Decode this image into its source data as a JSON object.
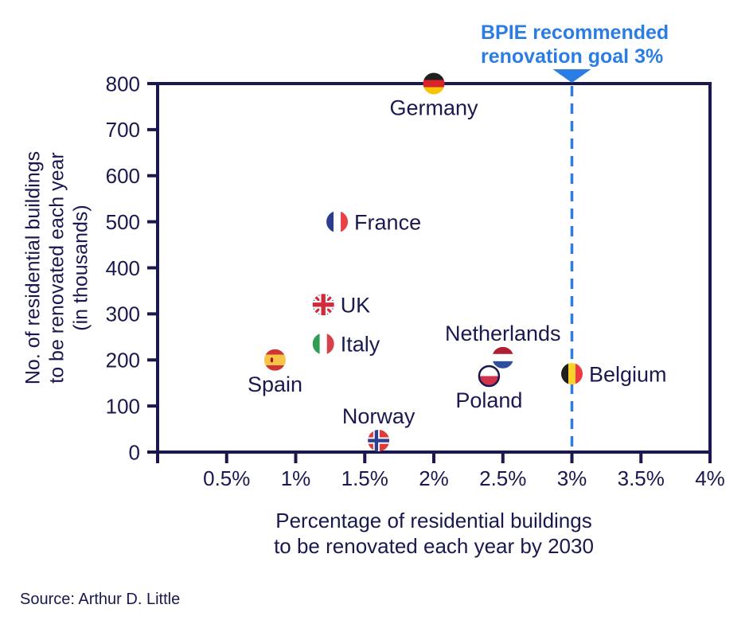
{
  "page": {
    "background": "#ffffff"
  },
  "colors": {
    "axis": "#191950",
    "text": "#191950",
    "accent_blue": "#2b7de3"
  },
  "source": "Source: Arthur D. Little",
  "chart_data": {
    "type": "scatter",
    "title": "",
    "xlabel_lines": [
      "Percentage of residential buildings",
      "to be renovated each year by 2030"
    ],
    "ylabel_lines": [
      "No. of residential buildings",
      "to be renovated each year",
      "(in thousands)"
    ],
    "xlim": [
      0,
      4
    ],
    "ylim": [
      0,
      800
    ],
    "grid": false,
    "x_ticks": [
      {
        "value": 0.5,
        "label": "0.5%"
      },
      {
        "value": 1.0,
        "label": "1%"
      },
      {
        "value": 1.5,
        "label": "1.5%"
      },
      {
        "value": 2.0,
        "label": "2%"
      },
      {
        "value": 2.5,
        "label": "2.5%"
      },
      {
        "value": 3.0,
        "label": "3%"
      },
      {
        "value": 3.5,
        "label": "3.5%"
      },
      {
        "value": 4.0,
        "label": "4%"
      }
    ],
    "y_ticks": [
      {
        "value": 0,
        "label": "0"
      },
      {
        "value": 100,
        "label": "100"
      },
      {
        "value": 200,
        "label": "200"
      },
      {
        "value": 300,
        "label": "300"
      },
      {
        "value": 400,
        "label": "400"
      },
      {
        "value": 500,
        "label": "500"
      },
      {
        "value": 600,
        "label": "600"
      },
      {
        "value": 700,
        "label": "700"
      },
      {
        "value": 800,
        "label": "800"
      }
    ],
    "reference_line": {
      "x": 3,
      "color": "#2b7de3",
      "style": "dashed"
    },
    "annotation": {
      "lines": [
        "BPIE recommended",
        "renovation goal 3%"
      ],
      "color": "#2b7de3"
    },
    "points": [
      {
        "name": "Germany",
        "x": 2.0,
        "y": 800,
        "label_pos": "below",
        "flag": {
          "kind": "hstripes",
          "colors": [
            "#1f1f1f",
            "#d8232a",
            "#f8c300"
          ]
        }
      },
      {
        "name": "France",
        "x": 1.3,
        "y": 500,
        "label_pos": "right",
        "flag": {
          "kind": "vstripes",
          "colors": [
            "#2c3c8f",
            "#ffffff",
            "#e8414a"
          ]
        }
      },
      {
        "name": "UK",
        "x": 1.2,
        "y": 320,
        "label_pos": "right",
        "flag": {
          "kind": "uk",
          "colors": [
            "#2b3990",
            "#ffffff",
            "#cf2b3a"
          ]
        }
      },
      {
        "name": "Italy",
        "x": 1.2,
        "y": 235,
        "label_pos": "right",
        "flag": {
          "kind": "vstripes",
          "colors": [
            "#2f9e54",
            "#ffffff",
            "#d8414a"
          ]
        }
      },
      {
        "name": "Spain",
        "x": 0.85,
        "y": 200,
        "label_pos": "below",
        "flag": {
          "kind": "hstripes",
          "colors": [
            "#d03433",
            "#f6c446",
            "#d03433"
          ],
          "weights": [
            1,
            2,
            1
          ],
          "crest": true
        }
      },
      {
        "name": "Netherlands",
        "x": 2.5,
        "y": 205,
        "label_pos": "above",
        "flag": {
          "kind": "hstripes",
          "colors": [
            "#ae1f32",
            "#ffffff",
            "#2d4f9e"
          ]
        }
      },
      {
        "name": "Poland",
        "x": 2.4,
        "y": 165,
        "label_pos": "below",
        "flag": {
          "kind": "hstripes",
          "colors": [
            "#ffffff",
            "#d1314c"
          ],
          "ring": "#191950"
        }
      },
      {
        "name": "Norway",
        "x": 1.6,
        "y": 25,
        "label_pos": "above",
        "flag": {
          "kind": "norway",
          "colors": [
            "#e03a3a",
            "#ffffff",
            "#2b3f92"
          ]
        }
      },
      {
        "name": "Belgium",
        "x": 3.0,
        "y": 170,
        "label_pos": "right",
        "flag": {
          "kind": "vstripes",
          "colors": [
            "#1f1f1f",
            "#f8d12a",
            "#ee3a43"
          ]
        }
      }
    ]
  }
}
